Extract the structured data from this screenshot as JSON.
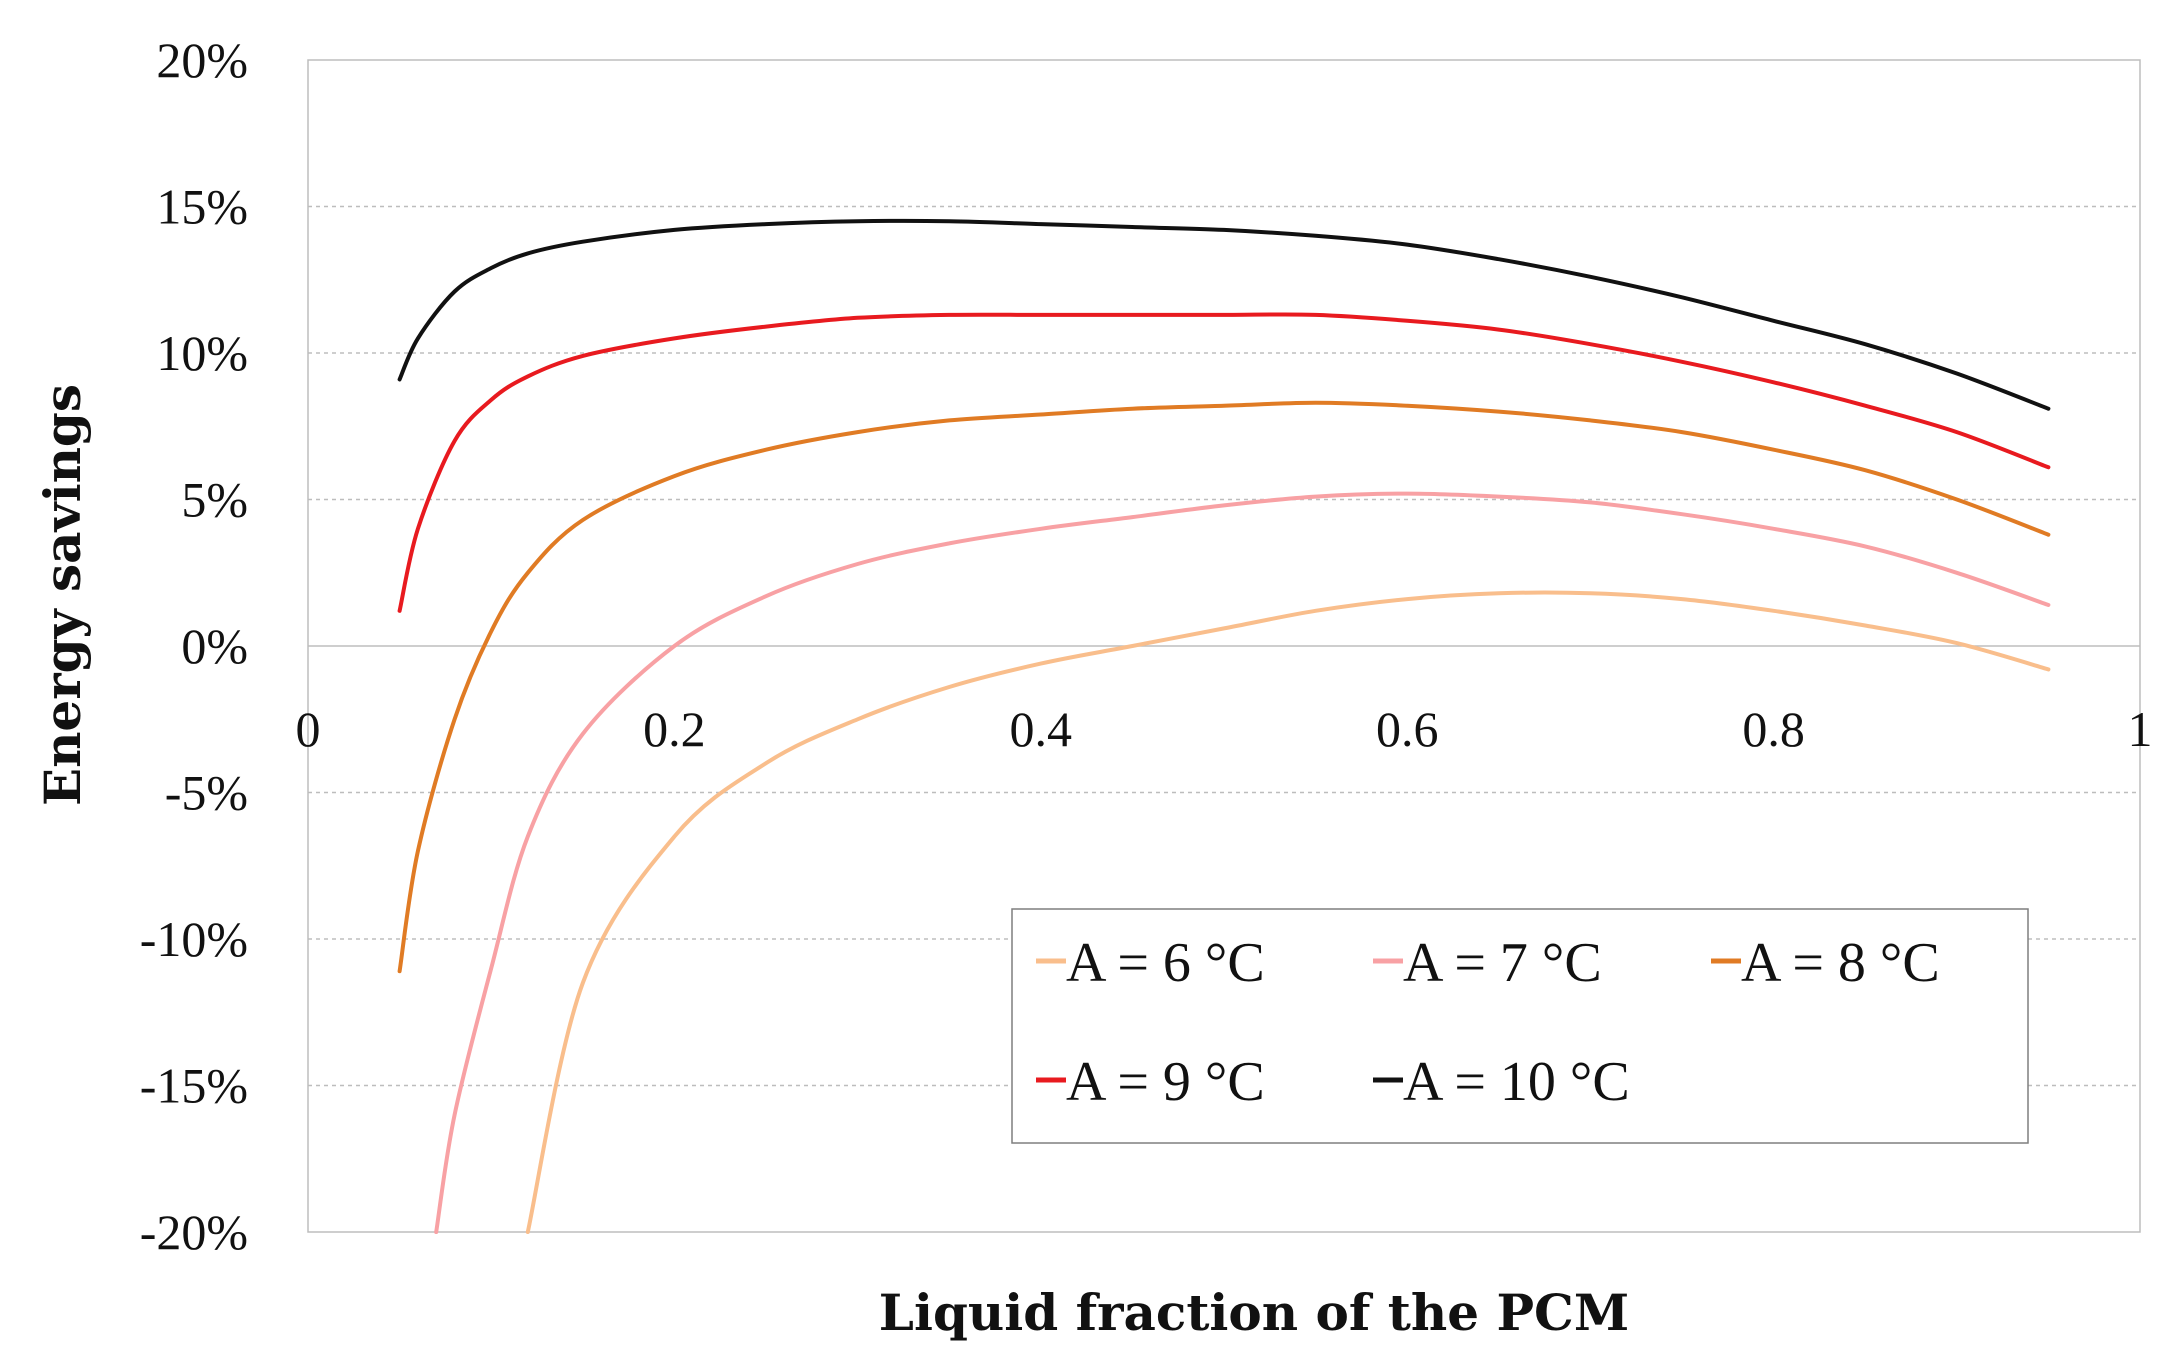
{
  "chart_data": {
    "type": "line",
    "xlabel": "Liquid fraction of the PCM",
    "ylabel": "Energy savings",
    "xlim": [
      0,
      1
    ],
    "ylim": [
      -0.2,
      0.2
    ],
    "x_ticks": [
      "0",
      "0.2",
      "0.4",
      "0.6",
      "0.8",
      "1"
    ],
    "y_ticks": [
      "20%",
      "15%",
      "10%",
      "5%",
      "0%",
      "-5%",
      "-10%",
      "-15%",
      "-20%"
    ],
    "legend_position": "bottom-right",
    "grid": "horizontal dashed",
    "series": [
      {
        "name": "A = 6 °C",
        "color": "#f9be8c",
        "x": [
          0.12,
          0.15,
          0.2,
          0.25,
          0.3,
          0.35,
          0.4,
          0.45,
          0.5,
          0.55,
          0.6,
          0.65,
          0.7,
          0.75,
          0.8,
          0.85,
          0.9,
          0.95
        ],
        "y": [
          -0.2,
          -0.115,
          -0.065,
          -0.04,
          -0.025,
          -0.014,
          -0.006,
          0.0,
          0.006,
          0.012,
          0.016,
          0.018,
          0.018,
          0.016,
          0.012,
          0.007,
          0.001,
          -0.008
        ]
      },
      {
        "name": "A = 7 °C",
        "color": "#f8a1a4",
        "x": [
          0.07,
          0.08,
          0.1,
          0.12,
          0.15,
          0.2,
          0.25,
          0.3,
          0.35,
          0.4,
          0.45,
          0.5,
          0.55,
          0.6,
          0.65,
          0.7,
          0.75,
          0.8,
          0.85,
          0.9,
          0.95
        ],
        "y": [
          -0.2,
          -0.16,
          -0.11,
          -0.065,
          -0.03,
          0.0,
          0.017,
          0.028,
          0.035,
          0.04,
          0.044,
          0.048,
          0.051,
          0.052,
          0.051,
          0.049,
          0.045,
          0.04,
          0.034,
          0.025,
          0.014
        ]
      },
      {
        "name": "A = 8 °C",
        "color": "#e07b24",
        "x": [
          0.05,
          0.06,
          0.08,
          0.1,
          0.12,
          0.15,
          0.2,
          0.25,
          0.3,
          0.35,
          0.4,
          0.45,
          0.5,
          0.55,
          0.6,
          0.65,
          0.7,
          0.75,
          0.8,
          0.85,
          0.9,
          0.95
        ],
        "y": [
          -0.111,
          -0.07,
          -0.025,
          0.005,
          0.025,
          0.043,
          0.058,
          0.067,
          0.073,
          0.077,
          0.079,
          0.081,
          0.082,
          0.083,
          0.082,
          0.08,
          0.077,
          0.073,
          0.067,
          0.06,
          0.05,
          0.038
        ]
      },
      {
        "name": "A = 9 °C",
        "color": "#e81a1f",
        "x": [
          0.05,
          0.06,
          0.08,
          0.1,
          0.12,
          0.15,
          0.2,
          0.25,
          0.3,
          0.35,
          0.4,
          0.45,
          0.5,
          0.55,
          0.6,
          0.65,
          0.7,
          0.75,
          0.8,
          0.85,
          0.9,
          0.95
        ],
        "y": [
          0.012,
          0.04,
          0.07,
          0.084,
          0.092,
          0.099,
          0.105,
          0.109,
          0.112,
          0.113,
          0.113,
          0.113,
          0.113,
          0.113,
          0.111,
          0.108,
          0.103,
          0.097,
          0.09,
          0.082,
          0.073,
          0.061
        ]
      },
      {
        "name": "A = 10 °C",
        "color": "#111111",
        "x": [
          0.05,
          0.06,
          0.08,
          0.1,
          0.12,
          0.15,
          0.2,
          0.25,
          0.3,
          0.35,
          0.4,
          0.45,
          0.5,
          0.55,
          0.6,
          0.65,
          0.7,
          0.75,
          0.8,
          0.85,
          0.9,
          0.95
        ],
        "y": [
          0.091,
          0.105,
          0.121,
          0.129,
          0.134,
          0.138,
          0.142,
          0.144,
          0.145,
          0.145,
          0.144,
          0.143,
          0.142,
          0.14,
          0.137,
          0.132,
          0.126,
          0.119,
          0.111,
          0.103,
          0.093,
          0.081
        ]
      }
    ]
  }
}
